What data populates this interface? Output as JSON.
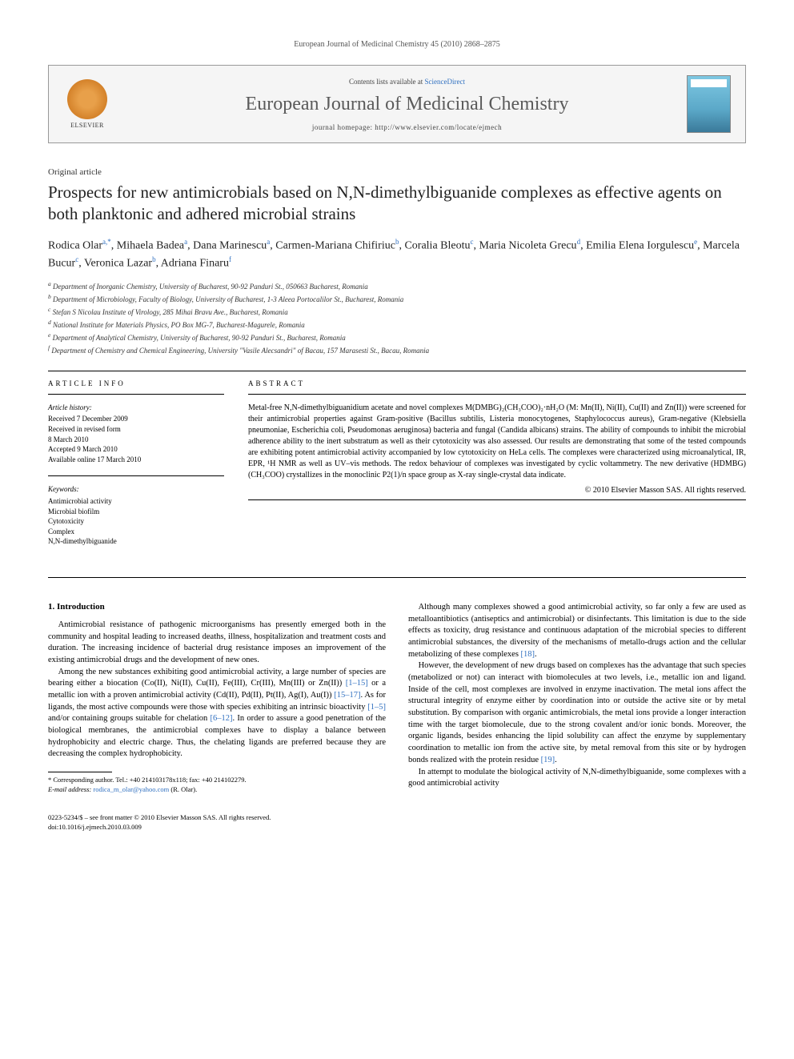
{
  "running_head": "European Journal of Medicinal Chemistry 45 (2010) 2868–2875",
  "journal_box": {
    "elsevier": "ELSEVIER",
    "contents_prefix": "Contents lists available at ",
    "contents_link": "ScienceDirect",
    "journal_name": "European Journal of Medicinal Chemistry",
    "homepage_label": "journal homepage: ",
    "homepage_url": "http://www.elsevier.com/locate/ejmech"
  },
  "article_type": "Original article",
  "title": "Prospects for new antimicrobials based on N,N-dimethylbiguanide complexes as effective agents on both planktonic and adhered microbial strains",
  "authors_html": "Rodica Olar<sup>a,*</sup>, Mihaela Badea<sup>a</sup>, Dana Marinescu<sup>a</sup>, Carmen-Mariana Chifiriuc<sup>b</sup>, Coralia Bleotu<sup>c</sup>, Maria Nicoleta Grecu<sup>d</sup>, Emilia Elena Iorgulescu<sup>e</sup>, Marcela Bucur<sup>c</sup>, Veronica Lazar<sup>b</sup>, Adriana Finaru<sup>f</sup>",
  "affiliations": [
    "a Department of Inorganic Chemistry, University of Bucharest, 90-92 Panduri St., 050663 Bucharest, Romania",
    "b Department of Microbiology, Faculty of Biology, University of Bucharest, 1-3 Aleea Portocalilor St., Bucharest, Romania",
    "c Stefan S Nicolau Institute of Virology, 285 Mihai Bravu Ave., Bucharest, Romania",
    "d National Institute for Materials Physics, PO Box MG-7, Bucharest-Magurele, Romania",
    "e Department of Analytical Chemistry, University of Bucharest, 90-92 Panduri St., Bucharest, Romania",
    "f Department of Chemistry and Chemical Engineering, University \"Vasile Alecsandri\" of Bacau, 157 Marasesti St., Bacau, Romania"
  ],
  "info": {
    "head": "ARTICLE INFO",
    "history_label": "Article history:",
    "history": [
      "Received 7 December 2009",
      "Received in revised form",
      "8 March 2010",
      "Accepted 9 March 2010",
      "Available online 17 March 2010"
    ],
    "keywords_label": "Keywords:",
    "keywords": [
      "Antimicrobial activity",
      "Microbial biofilm",
      "Cytotoxicity",
      "Complex",
      "N,N-dimethylbiguanide"
    ]
  },
  "abstract": {
    "head": "ABSTRACT",
    "text": "Metal-free N,N-dimethylbiguanidium acetate and novel complexes M(DMBG)₂(CH₃COO)₂·nH₂O (M: Mn(II), Ni(II), Cu(II) and Zn(II)) were screened for their antimicrobial properties against Gram-positive (Bacillus subtilis, Listeria monocytogenes, Staphylococcus aureus), Gram-negative (Klebsiella pneumoniae, Escherichia coli, Pseudomonas aeruginosa) bacteria and fungal (Candida albicans) strains. The ability of compounds to inhibit the microbial adherence ability to the inert substratum as well as their cytotoxicity was also assessed. Our results are demonstrating that some of the tested compounds are exhibiting potent antimicrobial activity accompanied by low cytotoxicity on HeLa cells. The complexes were characterized using microanalytical, IR, EPR, ¹H NMR as well as UV–vis methods. The redox behaviour of complexes was investigated by cyclic voltammetry. The new derivative (HDMBG)(CH₃COO) crystallizes in the monoclinic P2(1)/n space group as X-ray single-crystal data indicate.",
    "copyright": "© 2010 Elsevier Masson SAS. All rights reserved."
  },
  "section1": {
    "head": "1. Introduction",
    "p1": "Antimicrobial resistance of pathogenic microorganisms has presently emerged both in the community and hospital leading to increased deaths, illness, hospitalization and treatment costs and duration. The increasing incidence of bacterial drug resistance imposes an improvement of the existing antimicrobial drugs and the development of new ones.",
    "p2a": "Among the new substances exhibiting good antimicrobial activity, a large number of species are bearing either a biocation (Co(II), Ni(II), Cu(II), Fe(III), Cr(III), Mn(III) or Zn(II)) ",
    "p2_r1": "[1–15]",
    "p2b": " or a metallic ion with a proven antimicrobial activity (Cd(II), Pd(II), Pt(II), Ag(I), Au(I)) ",
    "p2_r2": "[15–17]",
    "p2c": ". As for ligands, the most active compounds were those with species exhibiting an intrinsic bioactivity ",
    "p2_r3": "[1–5]",
    "p2d": " and/or containing groups suitable for chelation ",
    "p2_r4": "[6–12]",
    "p2e": ". In order to assure a good penetration of the biological membranes, the antimicrobial complexes have to display a balance between hydrophobicity and electric charge. Thus, the chelating ligands are preferred because they are decreasing the complex hydrophobicity.",
    "p3a": "Although many complexes showed a good antimicrobial activity, so far only a few are used as metalloantibiotics (antiseptics and antimicrobial) or disinfectants. This limitation is due to the side effects as toxicity, drug resistance and continuous adaptation of the microbial species to different antimicrobial substances, the diversity of the mechanisms of metallo-drugs action and the cellular metabolizing of these complexes ",
    "p3_r1": "[18]",
    "p3b": ".",
    "p4a": "However, the development of new drugs based on complexes has the advantage that such species (metabolized or not) can interact with biomolecules at two levels, i.e., metallic ion and ligand. Inside of the cell, most complexes are involved in enzyme inactivation. The metal ions affect the structural integrity of enzyme either by coordination into or outside the active site or by metal substitution. By comparison with organic antimicrobials, the metal ions provide a longer interaction time with the target biomolecule, due to the strong covalent and/or ionic bonds. Moreover, the organic ligands, besides enhancing the lipid solubility can affect the enzyme by supplementary coordination to metallic ion from the active site, by metal removal from this site or by hydrogen bonds realized with the protein residue ",
    "p4_r1": "[19]",
    "p4b": ".",
    "p5": "In attempt to modulate the biological activity of N,N-dimethylbiguanide, some complexes with a good antimicrobial activity"
  },
  "footnotes": {
    "corr": "* Corresponding author. Tel.: +40 214103178x118; fax: +40 214102279.",
    "email_label": "E-mail address: ",
    "email": "rodica_m_olar@yahoo.com",
    "email_suffix": " (R. Olar)."
  },
  "footer": {
    "line1": "0223-5234/$ – see front matter © 2010 Elsevier Masson SAS. All rights reserved.",
    "line2": "doi:10.1016/j.ejmech.2010.03.009"
  }
}
